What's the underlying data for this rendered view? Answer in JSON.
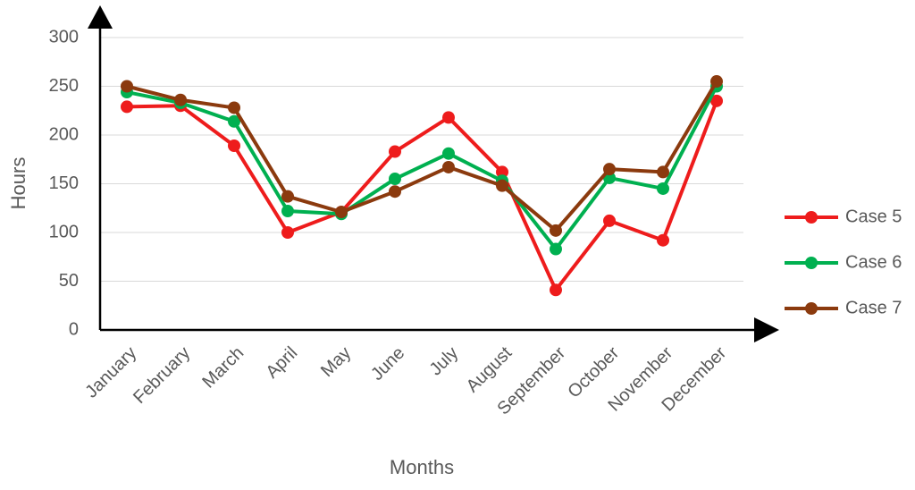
{
  "chart_data": {
    "type": "line",
    "x_label": "Months",
    "y_label": "Hours",
    "categories": [
      "January",
      "February",
      "March",
      "April",
      "May",
      "June",
      "July",
      "August",
      "September",
      "October",
      "November",
      "December"
    ],
    "series": [
      {
        "name": "Case 5",
        "color": "#ee1c1c",
        "values": [
          229,
          230,
          189,
          100,
          121,
          183,
          218,
          162,
          41,
          112,
          92,
          235
        ]
      },
      {
        "name": "Case 6",
        "color": "#00b050",
        "values": [
          244,
          233,
          214,
          122,
          119,
          155,
          181,
          153,
          83,
          156,
          145,
          250
        ]
      },
      {
        "name": "Case 7",
        "color": "#8b3a0e",
        "values": [
          250,
          236,
          228,
          137,
          121,
          142,
          167,
          148,
          102,
          165,
          162,
          255
        ]
      }
    ],
    "ylim": [
      0,
      300
    ],
    "yticks": [
      0,
      50,
      100,
      150,
      200,
      250,
      300
    ],
    "grid": true,
    "legend": "right"
  }
}
